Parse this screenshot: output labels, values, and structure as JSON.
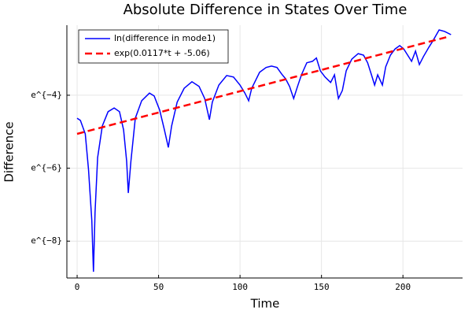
{
  "chart_data": {
    "type": "line",
    "title": "Absolute Difference in States Over Time",
    "xlabel": "Time",
    "ylabel": "Difference",
    "xlim": [
      -6.3,
      236.6
    ],
    "xticks": [
      0,
      50,
      100,
      150,
      200
    ],
    "ylim": [
      -9.01,
      -2.08
    ],
    "yticks": [
      {
        "value": -8,
        "label": "e^{−8}"
      },
      {
        "value": -6,
        "label": "e^{−6}"
      },
      {
        "value": -4,
        "label": "e^{−4}"
      }
    ],
    "grid": true,
    "legend": "top-left",
    "series": [
      {
        "name": "ln(difference in mode1)",
        "color": "#0000ff",
        "style": "solid",
        "x": [
          0,
          2,
          5,
          7,
          9,
          10,
          11,
          12.6,
          15.5,
          19,
          22.7,
          26,
          28.5,
          30.4,
          31.4,
          33,
          35.7,
          39.6,
          44.4,
          47.3,
          50.7,
          53.6,
          56,
          58,
          61.4,
          65.7,
          70.5,
          74.9,
          78.3,
          81.2,
          83,
          87,
          91.8,
          96,
          100,
          103,
          105.3,
          107.2,
          112,
          116,
          119.3,
          122.7,
          125.6,
          128,
          130.4,
          132.9,
          135.3,
          137.7,
          141,
          144.4,
          146.9,
          149.3,
          152.2,
          155.6,
          158,
          160.4,
          162.8,
          165.2,
          168.6,
          172.5,
          175.8,
          178.3,
          180.7,
          182.6,
          184.5,
          187.4,
          189.4,
          192.3,
          195.2,
          198,
          200.5,
          202.9,
          205.3,
          207.7,
          210.1,
          212.6,
          216,
          218.4,
          222.2,
          225.6,
          229.5
        ],
        "values": [
          -4.63,
          -4.69,
          -5.06,
          -6.03,
          -7.43,
          -8.84,
          -7.22,
          -5.71,
          -4.84,
          -4.45,
          -4.35,
          -4.45,
          -4.95,
          -5.81,
          -6.68,
          -5.81,
          -4.63,
          -4.15,
          -3.94,
          -4.02,
          -4.41,
          -4.95,
          -5.43,
          -4.84,
          -4.19,
          -3.81,
          -3.63,
          -3.76,
          -4.09,
          -4.67,
          -4.19,
          -3.72,
          -3.46,
          -3.5,
          -3.72,
          -3.94,
          -4.15,
          -3.81,
          -3.37,
          -3.24,
          -3.2,
          -3.24,
          -3.42,
          -3.55,
          -3.76,
          -4.09,
          -3.76,
          -3.44,
          -3.11,
          -3.07,
          -2.98,
          -3.33,
          -3.5,
          -3.65,
          -3.44,
          -4.09,
          -3.87,
          -3.33,
          -3.01,
          -2.86,
          -2.9,
          -3.11,
          -3.44,
          -3.72,
          -3.44,
          -3.72,
          -3.22,
          -2.9,
          -2.73,
          -2.64,
          -2.73,
          -2.9,
          -3.07,
          -2.79,
          -3.16,
          -2.94,
          -2.68,
          -2.51,
          -2.21,
          -2.25,
          -2.34
        ]
      },
      {
        "name": "exp(0.0117*t + -5.06)",
        "color": "#ff0000",
        "style": "dashed",
        "x": [
          0,
          228
        ],
        "values": [
          -5.06,
          -2.392
        ]
      }
    ]
  }
}
